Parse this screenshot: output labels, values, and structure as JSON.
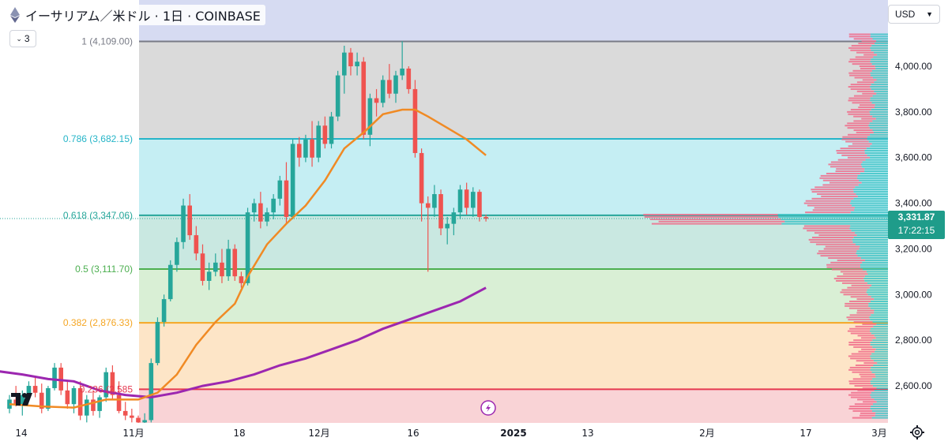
{
  "header": {
    "title": "イーサリアム／米ドル · 1日 · COINBASE",
    "collapse_count": "3",
    "currency": "USD"
  },
  "price_tag": {
    "price": "3,331.87",
    "countdown": "17:22:15"
  },
  "colors": {
    "up": "#26a69a",
    "down": "#ef5350",
    "ma_short": "#f08a24",
    "ma_long": "#9c27b0",
    "fib_0236": "#e53950",
    "fib_0382": "#f5a623",
    "fib_05": "#4caf50",
    "fib_0618": "#26a69a",
    "fib_0786": "#26b5c8",
    "fib_1": "#787b86"
  },
  "chart_data": {
    "type": "candlestick",
    "x_axis_labels": [
      "14",
      "11月",
      "18",
      "12月",
      "16",
      "2025",
      "13",
      "2月",
      "17",
      "3月"
    ],
    "y_axis_labels": [
      "4,000.00",
      "3,800.00",
      "3,600.00",
      "3,400.00",
      "3,200.00",
      "3,000.00",
      "2,800.00",
      "2,600.00"
    ],
    "y_range": [
      2450,
      4150
    ],
    "fib_levels": [
      {
        "ratio": 1,
        "price": 4109.0,
        "label": "1 (4,109.00)",
        "color": "#787b86",
        "band": "#dadada"
      },
      {
        "ratio": 0.786,
        "price": 3682.15,
        "label": "0.786 (3,682.15)",
        "color": "#26b5c8",
        "band": "#c5eef3"
      },
      {
        "ratio": 0.618,
        "price": 3347.06,
        "label": "0.618 (3,347.06)",
        "color": "#26a69a",
        "band": "#c9e8e1"
      },
      {
        "ratio": 0.5,
        "price": 3111.7,
        "label": "0.5 (3,111.70)",
        "color": "#4caf50",
        "band": "#d9efd5"
      },
      {
        "ratio": 0.382,
        "price": 2876.33,
        "label": "0.382 (2,876.33)",
        "color": "#f5a623",
        "band": "#fde5c7"
      },
      {
        "ratio": 0.236,
        "price": 2585.0,
        "label": "0.236 (2,585",
        "color": "#e53950",
        "band": "#f9d3d6"
      }
    ],
    "candles": [
      [
        2500,
        2560,
        2480,
        2540
      ],
      [
        2540,
        2600,
        2510,
        2520
      ],
      [
        2520,
        2580,
        2470,
        2560
      ],
      [
        2560,
        2620,
        2540,
        2600
      ],
      [
        2600,
        2640,
        2550,
        2570
      ],
      [
        2570,
        2610,
        2480,
        2500
      ],
      [
        2500,
        2600,
        2490,
        2590
      ],
      [
        2590,
        2700,
        2580,
        2680
      ],
      [
        2680,
        2700,
        2560,
        2580
      ],
      [
        2580,
        2620,
        2500,
        2520
      ],
      [
        2520,
        2600,
        2480,
        2590
      ],
      [
        2590,
        2620,
        2450,
        2470
      ],
      [
        2470,
        2560,
        2440,
        2540
      ],
      [
        2540,
        2580,
        2470,
        2490
      ],
      [
        2490,
        2560,
        2460,
        2550
      ],
      [
        2550,
        2680,
        2530,
        2660
      ],
      [
        2660,
        2690,
        2540,
        2560
      ],
      [
        2560,
        2620,
        2480,
        2490
      ],
      [
        2490,
        2530,
        2450,
        2470
      ],
      [
        2470,
        2500,
        2440,
        2460
      ],
      [
        2460,
        2470,
        2430,
        2440
      ],
      [
        2440,
        2480,
        2420,
        2450
      ],
      [
        2450,
        2720,
        2440,
        2700
      ],
      [
        2700,
        2900,
        2690,
        2880
      ],
      [
        2880,
        3000,
        2860,
        2980
      ],
      [
        2980,
        3150,
        2970,
        3130
      ],
      [
        3130,
        3250,
        3100,
        3230
      ],
      [
        3230,
        3420,
        3200,
        3390
      ],
      [
        3390,
        3440,
        3240,
        3260
      ],
      [
        3260,
        3300,
        3150,
        3180
      ],
      [
        3180,
        3220,
        3040,
        3060
      ],
      [
        3060,
        3140,
        3020,
        3100
      ],
      [
        3100,
        3180,
        3080,
        3140
      ],
      [
        3140,
        3200,
        3050,
        3080
      ],
      [
        3080,
        3240,
        3060,
        3200
      ],
      [
        3200,
        3220,
        3060,
        3080
      ],
      [
        3080,
        3100,
        3030,
        3050
      ],
      [
        3050,
        3380,
        3040,
        3360
      ],
      [
        3360,
        3420,
        3320,
        3400
      ],
      [
        3400,
        3450,
        3290,
        3320
      ],
      [
        3320,
        3380,
        3300,
        3360
      ],
      [
        3360,
        3440,
        3330,
        3420
      ],
      [
        3420,
        3520,
        3390,
        3500
      ],
      [
        3500,
        3580,
        3310,
        3340
      ],
      [
        3340,
        3680,
        3330,
        3660
      ],
      [
        3660,
        3690,
        3560,
        3600
      ],
      [
        3600,
        3700,
        3580,
        3680
      ],
      [
        3680,
        3760,
        3560,
        3600
      ],
      [
        3600,
        3760,
        3580,
        3740
      ],
      [
        3740,
        3780,
        3640,
        3660
      ],
      [
        3660,
        3800,
        3640,
        3780
      ],
      [
        3780,
        3980,
        3760,
        3960
      ],
      [
        3960,
        4090,
        3880,
        4060
      ],
      [
        4060,
        4080,
        3960,
        4000
      ],
      [
        4000,
        4060,
        3960,
        4020
      ],
      [
        4020,
        4040,
        3680,
        3700
      ],
      [
        3700,
        3880,
        3650,
        3860
      ],
      [
        3860,
        3900,
        3780,
        3840
      ],
      [
        3840,
        3960,
        3820,
        3940
      ],
      [
        3940,
        4010,
        3860,
        3880
      ],
      [
        3880,
        3980,
        3840,
        3960
      ],
      [
        3960,
        4110,
        3940,
        3990
      ],
      [
        3990,
        4000,
        3880,
        3900
      ],
      [
        3900,
        3940,
        3600,
        3620
      ],
      [
        3620,
        3640,
        3320,
        3400
      ],
      [
        3400,
        3430,
        3100,
        3380
      ],
      [
        3380,
        3480,
        3340,
        3440
      ],
      [
        3440,
        3460,
        3260,
        3290
      ],
      [
        3290,
        3340,
        3220,
        3310
      ],
      [
        3310,
        3380,
        3260,
        3360
      ],
      [
        3360,
        3480,
        3330,
        3460
      ],
      [
        3460,
        3490,
        3350,
        3380
      ],
      [
        3380,
        3470,
        3340,
        3450
      ],
      [
        3450,
        3460,
        3320,
        3340
      ],
      [
        3340,
        3350,
        3320,
        3332
      ]
    ],
    "ma_short": [
      [
        0,
        2520
      ],
      [
        5,
        2510
      ],
      [
        10,
        2505
      ],
      [
        15,
        2540
      ],
      [
        20,
        2540
      ],
      [
        23,
        2570
      ],
      [
        26,
        2650
      ],
      [
        29,
        2780
      ],
      [
        32,
        2880
      ],
      [
        35,
        2960
      ],
      [
        37,
        3080
      ],
      [
        40,
        3220
      ],
      [
        43,
        3310
      ],
      [
        46,
        3390
      ],
      [
        49,
        3500
      ],
      [
        52,
        3640
      ],
      [
        55,
        3710
      ],
      [
        58,
        3790
      ],
      [
        61,
        3810
      ],
      [
        63,
        3810
      ],
      [
        65,
        3780
      ],
      [
        68,
        3730
      ],
      [
        71,
        3680
      ],
      [
        74,
        3610
      ]
    ],
    "ma_long": [
      [
        -6,
        2680
      ],
      [
        2,
        2650
      ],
      [
        6,
        2630
      ],
      [
        10,
        2620
      ],
      [
        14,
        2580
      ],
      [
        18,
        2560
      ],
      [
        22,
        2550
      ],
      [
        26,
        2570
      ],
      [
        30,
        2600
      ],
      [
        34,
        2620
      ],
      [
        38,
        2650
      ],
      [
        42,
        2690
      ],
      [
        46,
        2720
      ],
      [
        50,
        2760
      ],
      [
        54,
        2800
      ],
      [
        58,
        2850
      ],
      [
        62,
        2890
      ],
      [
        66,
        2930
      ],
      [
        70,
        2970
      ],
      [
        74,
        3030
      ]
    ]
  }
}
